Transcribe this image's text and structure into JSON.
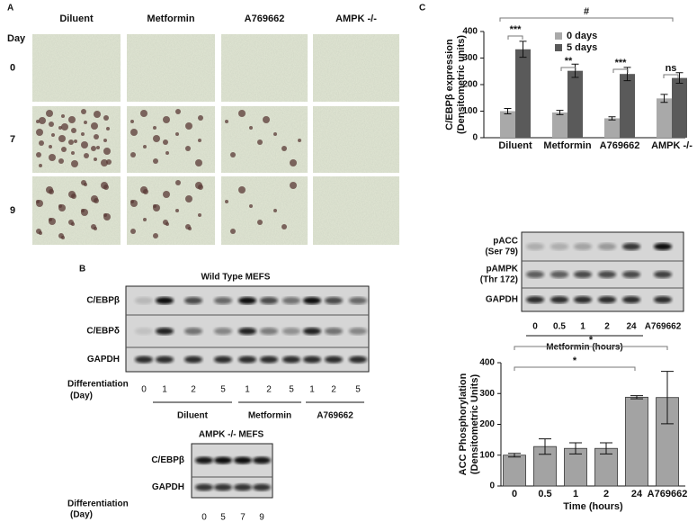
{
  "panel_a": {
    "label": "A",
    "day_label": "Day",
    "columns": [
      "Diluent",
      "Metformin",
      "A769662",
      "AMPK -/-"
    ],
    "days": [
      "0",
      "7",
      "9"
    ]
  },
  "panel_b": {
    "label": "B",
    "blot1": {
      "title": "Wild Type MEFS",
      "rows": [
        "C/EBPβ",
        "C/EBPδ",
        "GAPDH"
      ],
      "axis_label": [
        "Differentiation",
        "(Day)"
      ],
      "lanes": [
        "0",
        "1",
        "2",
        "5",
        "1",
        "2",
        "5",
        "1",
        "2",
        "5"
      ],
      "groups": [
        "Diluent",
        "Metformin",
        "A769662"
      ]
    },
    "blot2": {
      "title": "AMPK -/- MEFS",
      "rows": [
        "C/EBPβ",
        "GAPDH"
      ],
      "axis_label": [
        "Differentiation",
        "(Day)"
      ],
      "lanes": [
        "0",
        "5",
        "7",
        "9"
      ]
    }
  },
  "panel_c": {
    "label": "C",
    "blot": {
      "rows": [
        [
          "pACC",
          "(Ser 79)"
        ],
        [
          "pAMPK",
          "(Thr 172)"
        ],
        [
          "GAPDH"
        ]
      ],
      "lanes": [
        "0",
        "0.5",
        "1",
        "2",
        "24",
        "A769662"
      ],
      "group": "Metformin (hours)"
    }
  },
  "chart_data": [
    {
      "type": "bar",
      "ylabel": [
        "C/EBPβ expression",
        "(Densitometric units)"
      ],
      "categories": [
        "Diluent",
        "Metformin",
        "A769662",
        "AMPK -/-"
      ],
      "series": [
        {
          "name": "0 days",
          "color": "#a9a9a9",
          "values": [
            100,
            95,
            73,
            148
          ],
          "errors": [
            10,
            8,
            6,
            15
          ]
        },
        {
          "name": "5 days",
          "color": "#5a5a5a",
          "values": [
            333,
            252,
            240,
            225
          ],
          "errors": [
            30,
            25,
            25,
            20
          ]
        }
      ],
      "ylim": [
        0,
        400
      ],
      "yticks": [
        0,
        100,
        200,
        300,
        400
      ],
      "annotations": [
        "***",
        "**",
        "***",
        "ns",
        "#"
      ]
    },
    {
      "type": "bar",
      "ylabel": [
        "ACC Phosphorylation",
        "(Densitometric Units)"
      ],
      "xlabel": "Time (hours)",
      "categories": [
        "0",
        "0.5",
        "1",
        "2",
        "24",
        "A769662"
      ],
      "values": [
        100,
        128,
        122,
        122,
        288,
        287
      ],
      "errors": [
        6,
        25,
        18,
        18,
        5,
        85
      ],
      "color": "#a3a3a3",
      "ylim": [
        0,
        400
      ],
      "yticks": [
        0,
        100,
        200,
        300,
        400
      ],
      "annotations": [
        "*",
        "*"
      ]
    }
  ]
}
